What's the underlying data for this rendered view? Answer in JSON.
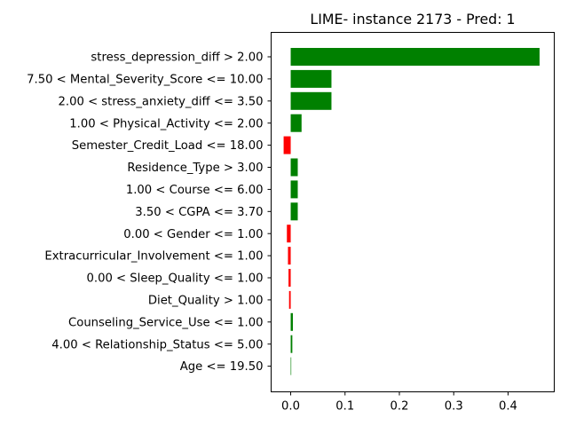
{
  "chart_data": {
    "type": "bar",
    "orientation": "horizontal",
    "title": "LIME- instance 2173 - Pred: 1",
    "xlabel": "",
    "ylabel": "",
    "xlim": [
      -0.036,
      0.485
    ],
    "xticks": [
      0.0,
      0.1,
      0.2,
      0.3,
      0.4
    ],
    "xtick_labels": [
      "0.0",
      "0.1",
      "0.2",
      "0.3",
      "0.4"
    ],
    "grid": false,
    "positive_color": "#008000",
    "negative_color": "#ff0000",
    "categories": [
      "stress_depression_diff > 2.00",
      "7.50 < Mental_Severity_Score <= 10.00",
      "2.00 < stress_anxiety_diff <= 3.50",
      "1.00 < Physical_Activity <= 2.00",
      "Semester_Credit_Load <= 18.00",
      "Residence_Type > 3.00",
      "1.00 < Course <= 6.00",
      "3.50 < CGPA <= 3.70",
      "0.00 < Gender <= 1.00",
      "Extracurricular_Involvement <= 1.00",
      "0.00 < Sleep_Quality <= 1.00",
      "Diet_Quality > 1.00",
      "Counseling_Service_Use <= 1.00",
      "4.00 < Relationship_Status <= 5.00",
      "Age <= 19.50"
    ],
    "values": [
      0.458,
      0.075,
      0.075,
      0.02,
      -0.013,
      0.013,
      0.013,
      0.013,
      -0.007,
      -0.005,
      -0.004,
      -0.003,
      0.004,
      0.003,
      0.001
    ]
  }
}
